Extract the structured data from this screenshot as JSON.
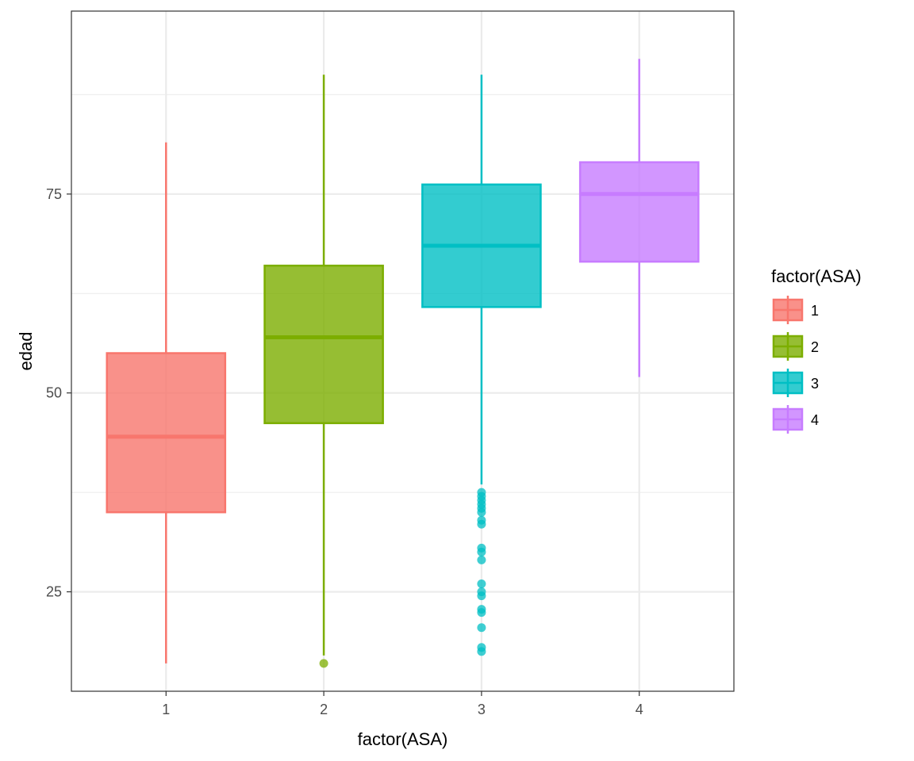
{
  "chart_data": {
    "type": "box",
    "xlabel": "factor(ASA)",
    "ylabel": "edad",
    "ylim": [
      12.5,
      98
    ],
    "y_ticks": [
      25,
      50,
      75
    ],
    "y_tick_labels": [
      "25",
      "50",
      "75"
    ],
    "grid": true,
    "legend": {
      "title": "factor(ASA)",
      "position": "right"
    },
    "categories": [
      "1",
      "2",
      "3",
      "4"
    ],
    "series": [
      {
        "name": "1",
        "color": "#F8766D",
        "whisker_low": 16,
        "q1": 35,
        "median": 44.5,
        "q3": 55,
        "whisker_high": 81.5,
        "outliers": []
      },
      {
        "name": "2",
        "color": "#7CAE00",
        "whisker_low": 17,
        "q1": 46.2,
        "median": 57,
        "q3": 66,
        "whisker_high": 90,
        "outliers": [
          16
        ]
      },
      {
        "name": "3",
        "color": "#00BFC4",
        "whisker_low": 38.5,
        "q1": 60.8,
        "median": 68.5,
        "q3": 76.2,
        "whisker_high": 90,
        "outliers": [
          37.5,
          37,
          36.5,
          36,
          35.5,
          35,
          34,
          33.5,
          30.5,
          30,
          29,
          26,
          25,
          24.5,
          22.8,
          22.4,
          20.5,
          18,
          17.5
        ]
      },
      {
        "name": "4",
        "color": "#C77CFF",
        "whisker_low": 52,
        "q1": 66.5,
        "median": 75,
        "q3": 79,
        "whisker_high": 92,
        "outliers": []
      }
    ]
  }
}
